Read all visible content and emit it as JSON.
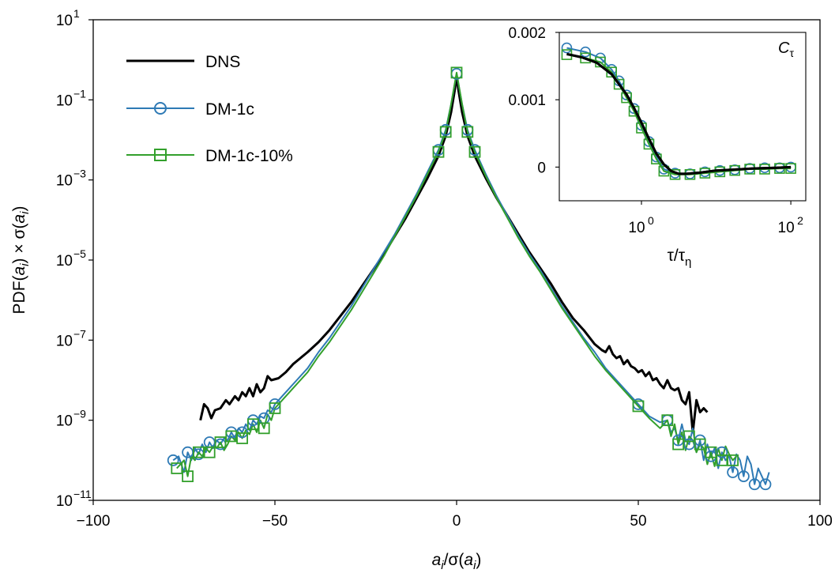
{
  "chart_data": [
    {
      "type": "line",
      "xlabel": "a_i/σ(a_i)",
      "xlabel_parts": {
        "a": "a",
        "i": "i",
        "slash": "/σ(",
        "a2": "a",
        "i2": "i",
        "close": ")"
      },
      "ylabel": "PDF(a_i) × σ(a_i)",
      "ylabel_parts": {
        "pdf": "PDF(",
        "a": "a",
        "i": "i",
        "mid": ") × σ(",
        "a2": "a",
        "i2": "i",
        "close": ")"
      },
      "xlim": [
        -100,
        100
      ],
      "ylim_exponents": [
        -11,
        1
      ],
      "yscale": "log",
      "xticks": [
        "−100",
        "−50",
        "0",
        "50",
        "100"
      ],
      "yticks": [
        {
          "base": "10",
          "exp": "1"
        },
        {
          "base": "10",
          "exp": "-1"
        },
        {
          "base": "10",
          "exp": "-3"
        },
        {
          "base": "10",
          "exp": "-5"
        },
        {
          "base": "10",
          "exp": "-7"
        },
        {
          "base": "10",
          "exp": "-9"
        },
        {
          "base": "10",
          "exp": "-11"
        }
      ],
      "legend_position": "top-left",
      "grid": false,
      "series": [
        {
          "name": "DNS",
          "color": "#000000",
          "marker": "none",
          "x": [
            -70.5,
            -69.5,
            -68.5,
            -67.5,
            -66.5,
            -65,
            -63.5,
            -62.5,
            -61,
            -60,
            -59,
            -58,
            -57,
            -56,
            -55,
            -54,
            -53,
            -52,
            -51,
            -49,
            -47,
            -45,
            -43,
            -41,
            -38,
            -35,
            -32,
            -29,
            -26,
            -23,
            -20,
            -17,
            -14,
            -11,
            -8,
            -5,
            -3,
            -1.5,
            -0.5,
            0,
            0.5,
            1.5,
            3,
            5,
            8,
            11,
            14,
            17,
            20,
            23,
            26,
            29,
            32,
            35,
            38,
            40,
            41,
            42,
            43,
            44,
            45,
            46,
            47,
            48,
            49,
            50,
            51,
            52,
            53,
            54,
            55,
            56,
            57,
            58,
            59,
            60,
            61,
            62,
            63,
            64,
            65,
            66,
            67,
            68,
            69
          ],
          "y_exp": [
            -9.0,
            -8.6,
            -8.7,
            -8.95,
            -8.75,
            -8.7,
            -8.5,
            -8.6,
            -8.4,
            -8.5,
            -8.3,
            -8.4,
            -8.2,
            -8.4,
            -8.1,
            -8.3,
            -8.2,
            -7.9,
            -8.0,
            -7.95,
            -7.8,
            -7.6,
            -7.45,
            -7.3,
            -7.05,
            -6.75,
            -6.4,
            -6.05,
            -5.65,
            -5.25,
            -4.85,
            -4.4,
            -3.95,
            -3.45,
            -2.95,
            -2.4,
            -1.9,
            -1.3,
            -0.75,
            -0.42,
            -0.75,
            -1.3,
            -1.9,
            -2.4,
            -2.95,
            -3.45,
            -3.9,
            -4.35,
            -4.8,
            -5.2,
            -5.6,
            -6.05,
            -6.45,
            -6.75,
            -7.1,
            -7.25,
            -7.3,
            -7.15,
            -7.35,
            -7.45,
            -7.4,
            -7.6,
            -7.5,
            -7.65,
            -7.7,
            -7.8,
            -7.75,
            -7.9,
            -7.8,
            -8.0,
            -7.95,
            -8.1,
            -8.2,
            -8.0,
            -8.2,
            -8.25,
            -8.2,
            -8.5,
            -8.6,
            -8.3,
            -9.3,
            -8.5,
            -8.8,
            -8.7,
            -8.8
          ]
        },
        {
          "name": "DM-1c",
          "color": "#2e7ab5",
          "marker": "circle",
          "x": [
            -78,
            -76.5,
            -75,
            -74,
            -73,
            -72,
            -71,
            -70,
            -69,
            -68,
            -67,
            -66,
            -65,
            -64,
            -63,
            -62,
            -61,
            -60,
            -59,
            -58,
            -57,
            -56,
            -55,
            -54,
            -53,
            -52,
            -51,
            -50,
            -47,
            -44,
            -41,
            -38,
            -35,
            -32,
            -29,
            -26,
            -23,
            -20,
            -17,
            -14,
            -11,
            -8,
            -5,
            -3,
            -1.5,
            0,
            1.5,
            3,
            5,
            8,
            11,
            14,
            17,
            20,
            23,
            26,
            29,
            32,
            35,
            38,
            41,
            44,
            47,
            50,
            53,
            56,
            58,
            59,
            60,
            61,
            62,
            63,
            64,
            65,
            66,
            67,
            68,
            69,
            70,
            71,
            72,
            73,
            74,
            75,
            76,
            77,
            78,
            79,
            80,
            81,
            82,
            83,
            84,
            85,
            86
          ],
          "y_exp": [
            -10.0,
            -9.9,
            -10.3,
            -9.8,
            -10.0,
            -9.7,
            -9.85,
            -9.6,
            -9.8,
            -9.55,
            -9.7,
            -9.5,
            -9.6,
            -9.45,
            -9.5,
            -9.3,
            -9.45,
            -9.2,
            -9.3,
            -9.1,
            -9.25,
            -9.0,
            -9.1,
            -8.9,
            -8.95,
            -8.75,
            -8.8,
            -8.6,
            -8.3,
            -8.0,
            -7.7,
            -7.3,
            -6.95,
            -6.55,
            -6.15,
            -5.7,
            -5.25,
            -4.8,
            -4.35,
            -3.85,
            -3.35,
            -2.8,
            -2.25,
            -1.75,
            -1.1,
            -0.35,
            -1.1,
            -1.75,
            -2.25,
            -2.85,
            -3.4,
            -3.9,
            -4.4,
            -4.85,
            -5.25,
            -5.7,
            -6.15,
            -6.55,
            -6.95,
            -7.3,
            -7.7,
            -8.0,
            -8.3,
            -8.6,
            -8.9,
            -9.05,
            -9.0,
            -9.3,
            -9.2,
            -9.5,
            -9.1,
            -9.5,
            -9.6,
            -9.2,
            -9.8,
            -9.5,
            -10.0,
            -9.6,
            -9.9,
            -9.7,
            -10.2,
            -9.8,
            -10.0,
            -9.9,
            -10.3,
            -9.85,
            -10.0,
            -10.4,
            -9.9,
            -10.1,
            -10.6,
            -10.2,
            -10.4,
            -10.6,
            -10.3
          ]
        },
        {
          "name": "DM-1c-10%",
          "color": "#33a02c",
          "marker": "square",
          "x": [
            -77,
            -76,
            -75,
            -74,
            -73,
            -72,
            -71,
            -70,
            -69,
            -68,
            -67,
            -66,
            -65,
            -64,
            -63,
            -62,
            -61,
            -60,
            -59,
            -58,
            -57,
            -56,
            -55,
            -54,
            -53,
            -52,
            -51,
            -50,
            -47,
            -44,
            -41,
            -38,
            -35,
            -32,
            -29,
            -26,
            -23,
            -20,
            -17,
            -14,
            -11,
            -8,
            -5,
            -3,
            -1.5,
            0,
            1.5,
            3,
            5,
            8,
            11,
            14,
            17,
            20,
            23,
            26,
            29,
            32,
            35,
            38,
            41,
            44,
            47,
            50,
            53,
            56,
            58,
            59,
            60,
            61,
            62,
            63,
            64,
            65,
            66,
            67,
            68,
            69,
            70,
            71,
            72,
            73,
            74,
            75,
            76,
            77
          ],
          "y_exp": [
            -10.2,
            -10.1,
            -10.0,
            -10.4,
            -9.9,
            -10.0,
            -9.8,
            -9.9,
            -9.7,
            -9.8,
            -9.65,
            -9.7,
            -9.55,
            -9.75,
            -9.6,
            -9.4,
            -9.5,
            -9.3,
            -9.45,
            -9.25,
            -9.35,
            -9.1,
            -9.3,
            -9.0,
            -9.2,
            -8.85,
            -9.0,
            -8.7,
            -8.4,
            -8.1,
            -7.8,
            -7.4,
            -7.05,
            -6.65,
            -6.25,
            -5.8,
            -5.35,
            -4.9,
            -4.4,
            -3.9,
            -3.4,
            -2.85,
            -2.3,
            -1.8,
            -1.1,
            -0.32,
            -1.1,
            -1.8,
            -2.3,
            -2.9,
            -3.45,
            -3.95,
            -4.45,
            -4.9,
            -5.3,
            -5.75,
            -6.2,
            -6.6,
            -7.0,
            -7.4,
            -7.75,
            -8.05,
            -8.35,
            -8.65,
            -8.95,
            -9.2,
            -9.0,
            -9.4,
            -9.1,
            -9.6,
            -9.3,
            -9.75,
            -9.4,
            -9.5,
            -9.8,
            -9.6,
            -9.7,
            -10.1,
            -9.8,
            -10.15,
            -9.7,
            -10.0,
            -9.65,
            -9.85,
            -10.0,
            -9.9
          ]
        }
      ]
    },
    {
      "type": "line",
      "xlabel": "τ/τη",
      "xlabel_parts": {
        "tau": "τ/τ",
        "eta": "η"
      },
      "ylabel": "",
      "annotation": "Cτ",
      "annotation_parts": {
        "c": "C",
        "tau": "τ"
      },
      "xscale": "log",
      "xlim_exponents": [
        -1.1,
        2.2
      ],
      "ylim": [
        -0.0005,
        0.002
      ],
      "xticks": [
        {
          "base": "10",
          "exp": "0"
        },
        {
          "base": "10",
          "exp": "2"
        }
      ],
      "yticks": [
        "0.002",
        "0.001",
        "0"
      ],
      "yticks_values": [
        0.002,
        0.001,
        0
      ],
      "grid": false,
      "series": [
        {
          "name": "DNS",
          "color": "#000000",
          "marker": "none",
          "log10_x": [
            -1.0,
            -0.8,
            -0.6,
            -0.4,
            -0.2,
            -0.1,
            0.0,
            0.1,
            0.2,
            0.3,
            0.4,
            0.5,
            0.6,
            0.8,
            1.0,
            1.2,
            1.5,
            1.8,
            2.0
          ],
          "y": [
            0.00168,
            0.00163,
            0.00155,
            0.00138,
            0.00108,
            0.00088,
            0.00066,
            0.00042,
            0.0002,
            4e-05,
            -6e-05,
            -0.0001,
            -0.0001,
            -8e-05,
            -5e-05,
            -4e-05,
            -2e-05,
            -1e-05,
            0.0
          ]
        },
        {
          "name": "DM-1c",
          "color": "#2e7ab5",
          "marker": "circle",
          "log10_x": [
            -1.0,
            -0.75,
            -0.55,
            -0.4,
            -0.3,
            -0.2,
            -0.1,
            0.0,
            0.1,
            0.2,
            0.3,
            0.45,
            0.65,
            0.85,
            1.05,
            1.25,
            1.45,
            1.65,
            1.85,
            2.0
          ],
          "y": [
            0.00177,
            0.00171,
            0.00162,
            0.00145,
            0.00128,
            0.00107,
            0.00087,
            0.00062,
            0.00038,
            0.00015,
            -3e-05,
            -9e-05,
            -0.0001,
            -7e-05,
            -5e-05,
            -4e-05,
            -2e-05,
            -1e-05,
            -1e-05,
            0.0
          ]
        },
        {
          "name": "DM-1c-10%",
          "color": "#33a02c",
          "marker": "square",
          "log10_x": [
            -1.0,
            -0.75,
            -0.55,
            -0.4,
            -0.3,
            -0.2,
            -0.1,
            0.0,
            0.1,
            0.2,
            0.3,
            0.45,
            0.65,
            0.85,
            1.05,
            1.25,
            1.45,
            1.65,
            1.85,
            2.0
          ],
          "y": [
            0.00167,
            0.00162,
            0.00156,
            0.00141,
            0.00123,
            0.00103,
            0.00083,
            0.00058,
            0.00034,
            0.00012,
            -6e-05,
            -0.00011,
            -0.00011,
            -9e-05,
            -7e-05,
            -5e-05,
            -3e-05,
            -3e-05,
            -2e-05,
            -2e-05
          ]
        }
      ]
    }
  ]
}
